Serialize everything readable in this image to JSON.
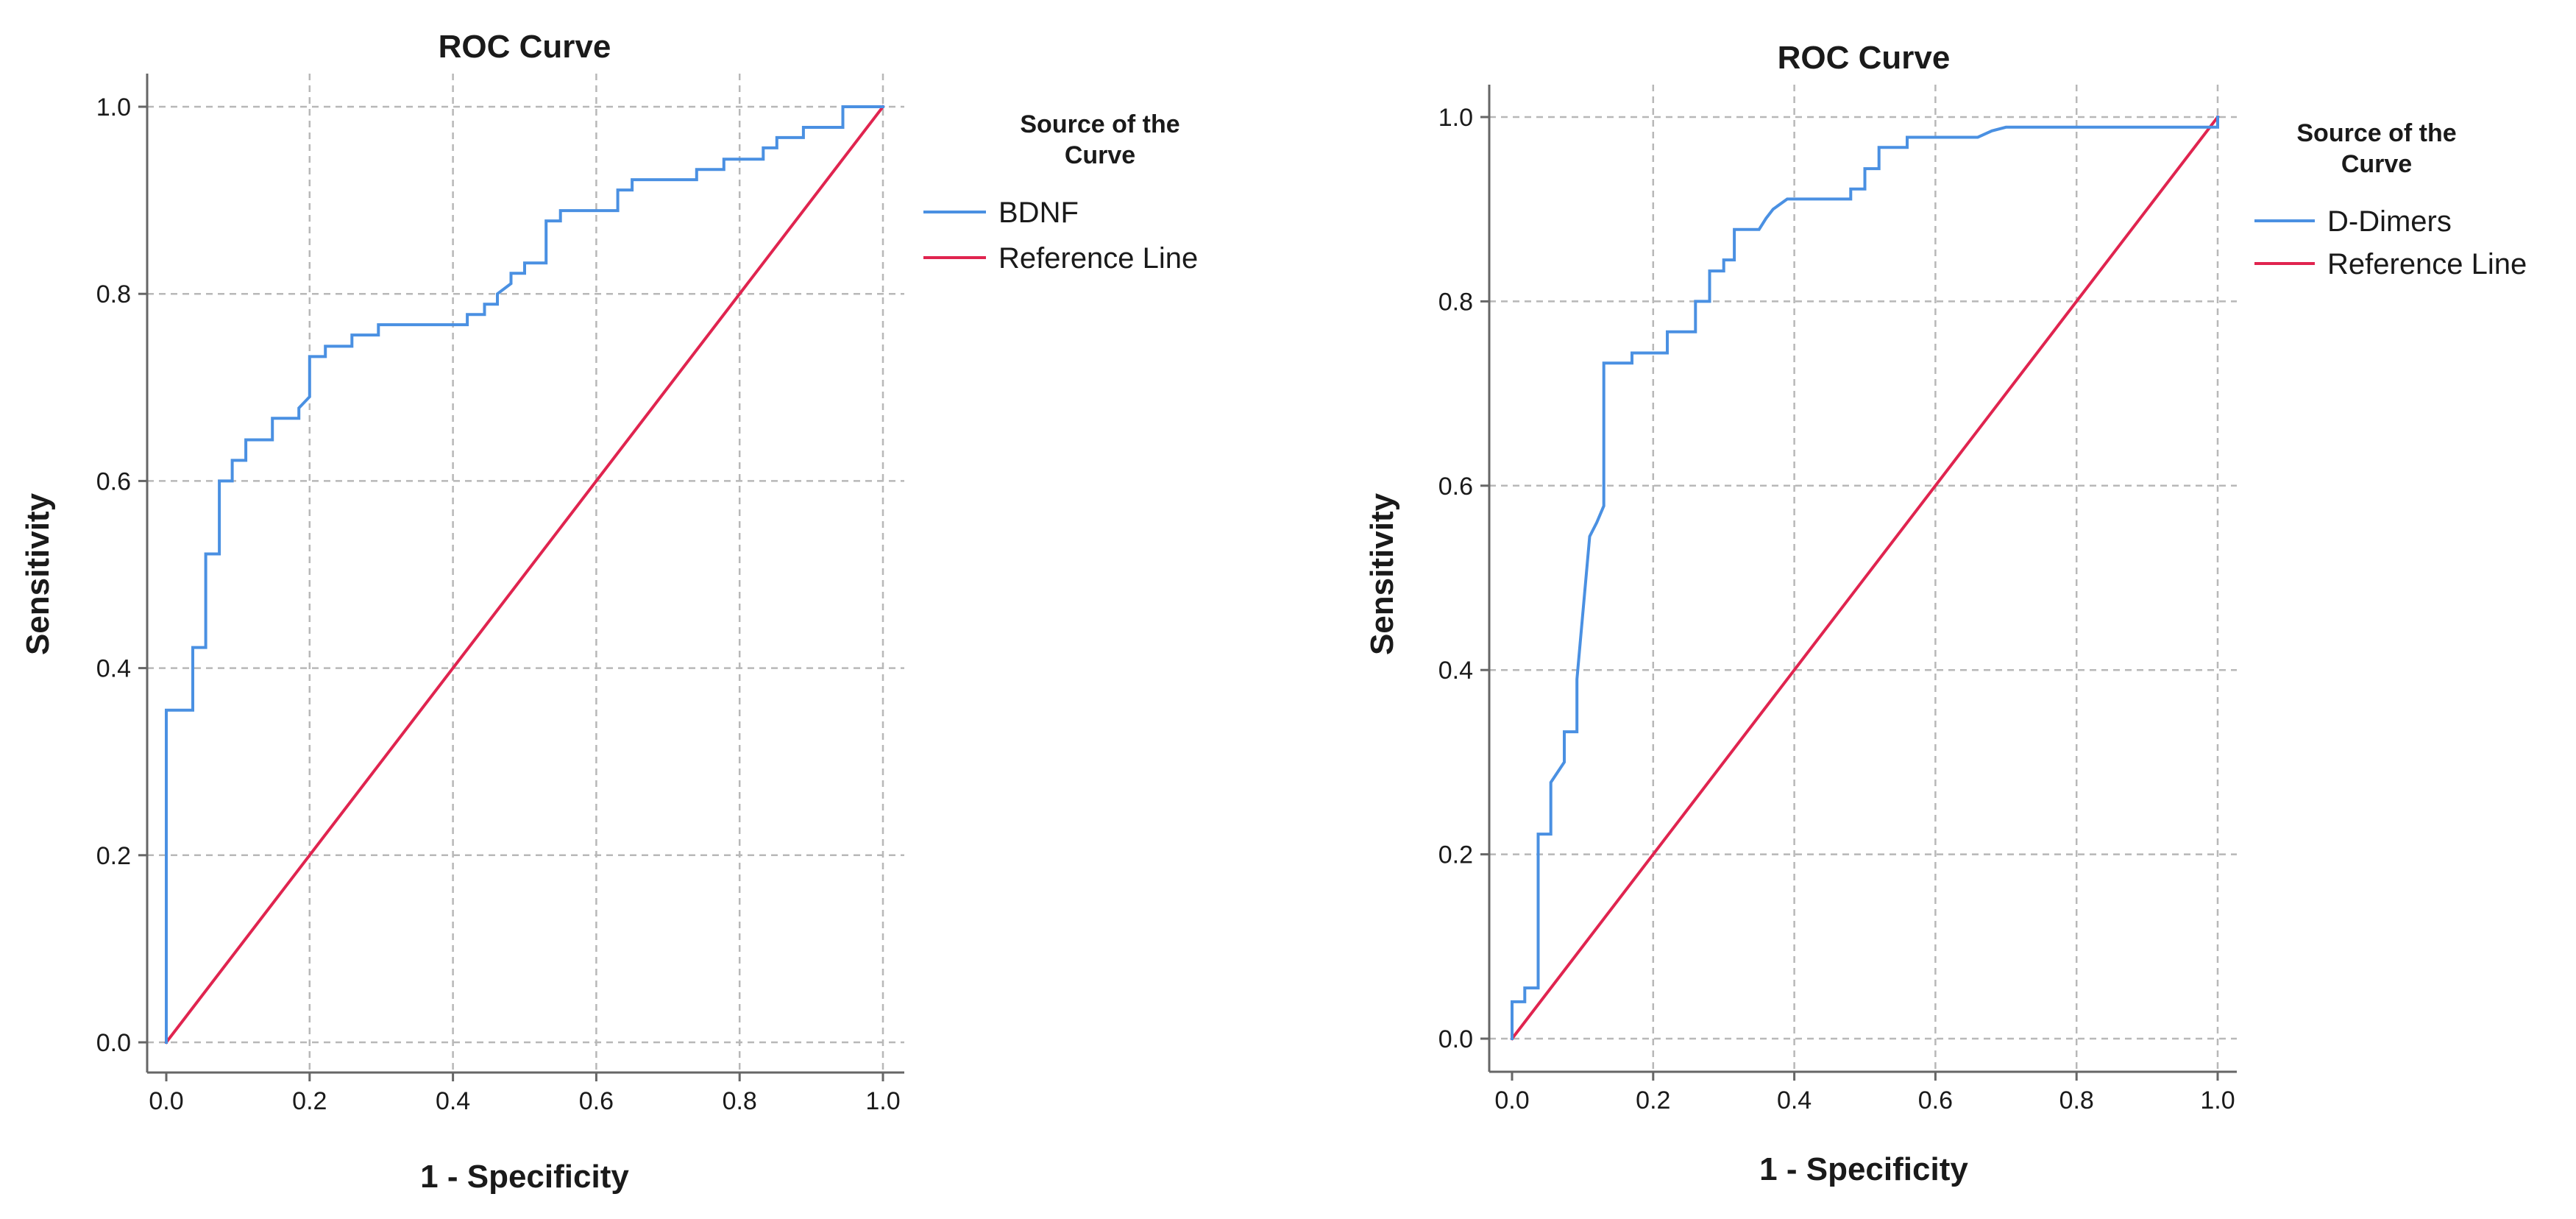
{
  "colors": {
    "curve": "#4a90e2",
    "reference": "#e0244f",
    "grid": "#b8b8b8",
    "axis": "#666666"
  },
  "chart_data": [
    {
      "type": "line",
      "title": "ROC Curve",
      "xlabel": "1 - Specificity",
      "ylabel": "Sensitivity",
      "xlim": [
        0,
        1
      ],
      "ylim": [
        0,
        1
      ],
      "xticks": [
        "0.0",
        "0.2",
        "0.4",
        "0.6",
        "0.8",
        "1.0"
      ],
      "yticks": [
        "0.0",
        "0.2",
        "0.4",
        "0.6",
        "0.8",
        "1.0"
      ],
      "grid": true,
      "legend": {
        "title": "Source of the Curve",
        "title_lines": [
          "Source of the",
          "Curve"
        ],
        "position": "right"
      },
      "series": [
        {
          "name": "BDNF",
          "color": "#4a90e2",
          "x": [
            0.0,
            0.0,
            0.037,
            0.037,
            0.055,
            0.055,
            0.074,
            0.074,
            0.08,
            0.092,
            0.092,
            0.111,
            0.111,
            0.148,
            0.148,
            0.185,
            0.185,
            0.2,
            0.2,
            0.222,
            0.222,
            0.259,
            0.259,
            0.296,
            0.296,
            0.42,
            0.42,
            0.444,
            0.444,
            0.462,
            0.462,
            0.481,
            0.481,
            0.5,
            0.5,
            0.53,
            0.53,
            0.55,
            0.55,
            0.63,
            0.63,
            0.65,
            0.65,
            0.74,
            0.74,
            0.778,
            0.778,
            0.815,
            0.815,
            0.833,
            0.833,
            0.852,
            0.852,
            0.87,
            0.87,
            0.889,
            0.889,
            0.93,
            0.93,
            0.944,
            0.944,
            1.0
          ],
          "y": [
            0.0,
            0.355,
            0.355,
            0.422,
            0.422,
            0.522,
            0.522,
            0.6,
            0.6,
            0.6,
            0.622,
            0.622,
            0.644,
            0.644,
            0.667,
            0.667,
            0.678,
            0.69,
            0.733,
            0.733,
            0.744,
            0.744,
            0.756,
            0.756,
            0.767,
            0.767,
            0.778,
            0.778,
            0.789,
            0.789,
            0.8,
            0.811,
            0.822,
            0.822,
            0.833,
            0.833,
            0.878,
            0.878,
            0.889,
            0.889,
            0.911,
            0.911,
            0.922,
            0.922,
            0.933,
            0.933,
            0.944,
            0.944,
            0.944,
            0.944,
            0.956,
            0.956,
            0.967,
            0.967,
            0.967,
            0.967,
            0.978,
            0.978,
            0.978,
            0.978,
            1.0,
            1.0
          ]
        },
        {
          "name": "Reference Line",
          "color": "#e0244f",
          "x": [
            0.0,
            1.0
          ],
          "y": [
            0.0,
            1.0
          ]
        }
      ]
    },
    {
      "type": "line",
      "title": "ROC Curve",
      "xlabel": "1 - Specificity",
      "ylabel": "Sensitivity",
      "xlim": [
        0,
        1
      ],
      "ylim": [
        0,
        1
      ],
      "xticks": [
        "0.0",
        "0.2",
        "0.4",
        "0.6",
        "0.8",
        "1.0"
      ],
      "yticks": [
        "0.0",
        "0.2",
        "0.4",
        "0.6",
        "0.8",
        "1.0"
      ],
      "grid": true,
      "legend": {
        "title": "Source of the Curve",
        "title_lines": [
          "Source of the",
          "Curve"
        ],
        "position": "right"
      },
      "series": [
        {
          "name": "D-Dimers",
          "color": "#4a90e2",
          "x": [
            0.0,
            0.0,
            0.018,
            0.018,
            0.037,
            0.037,
            0.055,
            0.055,
            0.074,
            0.074,
            0.092,
            0.092,
            0.11,
            0.12,
            0.13,
            0.13,
            0.17,
            0.17,
            0.22,
            0.22,
            0.26,
            0.26,
            0.28,
            0.28,
            0.3,
            0.3,
            0.315,
            0.315,
            0.35,
            0.36,
            0.37,
            0.37,
            0.39,
            0.39,
            0.44,
            0.48,
            0.48,
            0.5,
            0.5,
            0.52,
            0.52,
            0.56,
            0.56,
            0.66,
            0.68,
            0.7,
            1.0,
            1.0
          ],
          "y": [
            0.0,
            0.04,
            0.04,
            0.055,
            0.055,
            0.222,
            0.222,
            0.278,
            0.3,
            0.333,
            0.333,
            0.39,
            0.545,
            0.56,
            0.578,
            0.733,
            0.733,
            0.744,
            0.744,
            0.767,
            0.767,
            0.8,
            0.8,
            0.833,
            0.833,
            0.845,
            0.845,
            0.878,
            0.878,
            0.89,
            0.9,
            0.9,
            0.911,
            0.911,
            0.911,
            0.911,
            0.922,
            0.922,
            0.944,
            0.944,
            0.967,
            0.967,
            0.978,
            0.978,
            0.985,
            0.989,
            0.989,
            1.0
          ]
        },
        {
          "name": "Reference Line",
          "color": "#e0244f",
          "x": [
            0.0,
            1.0
          ],
          "y": [
            0.0,
            1.0
          ]
        }
      ]
    }
  ]
}
